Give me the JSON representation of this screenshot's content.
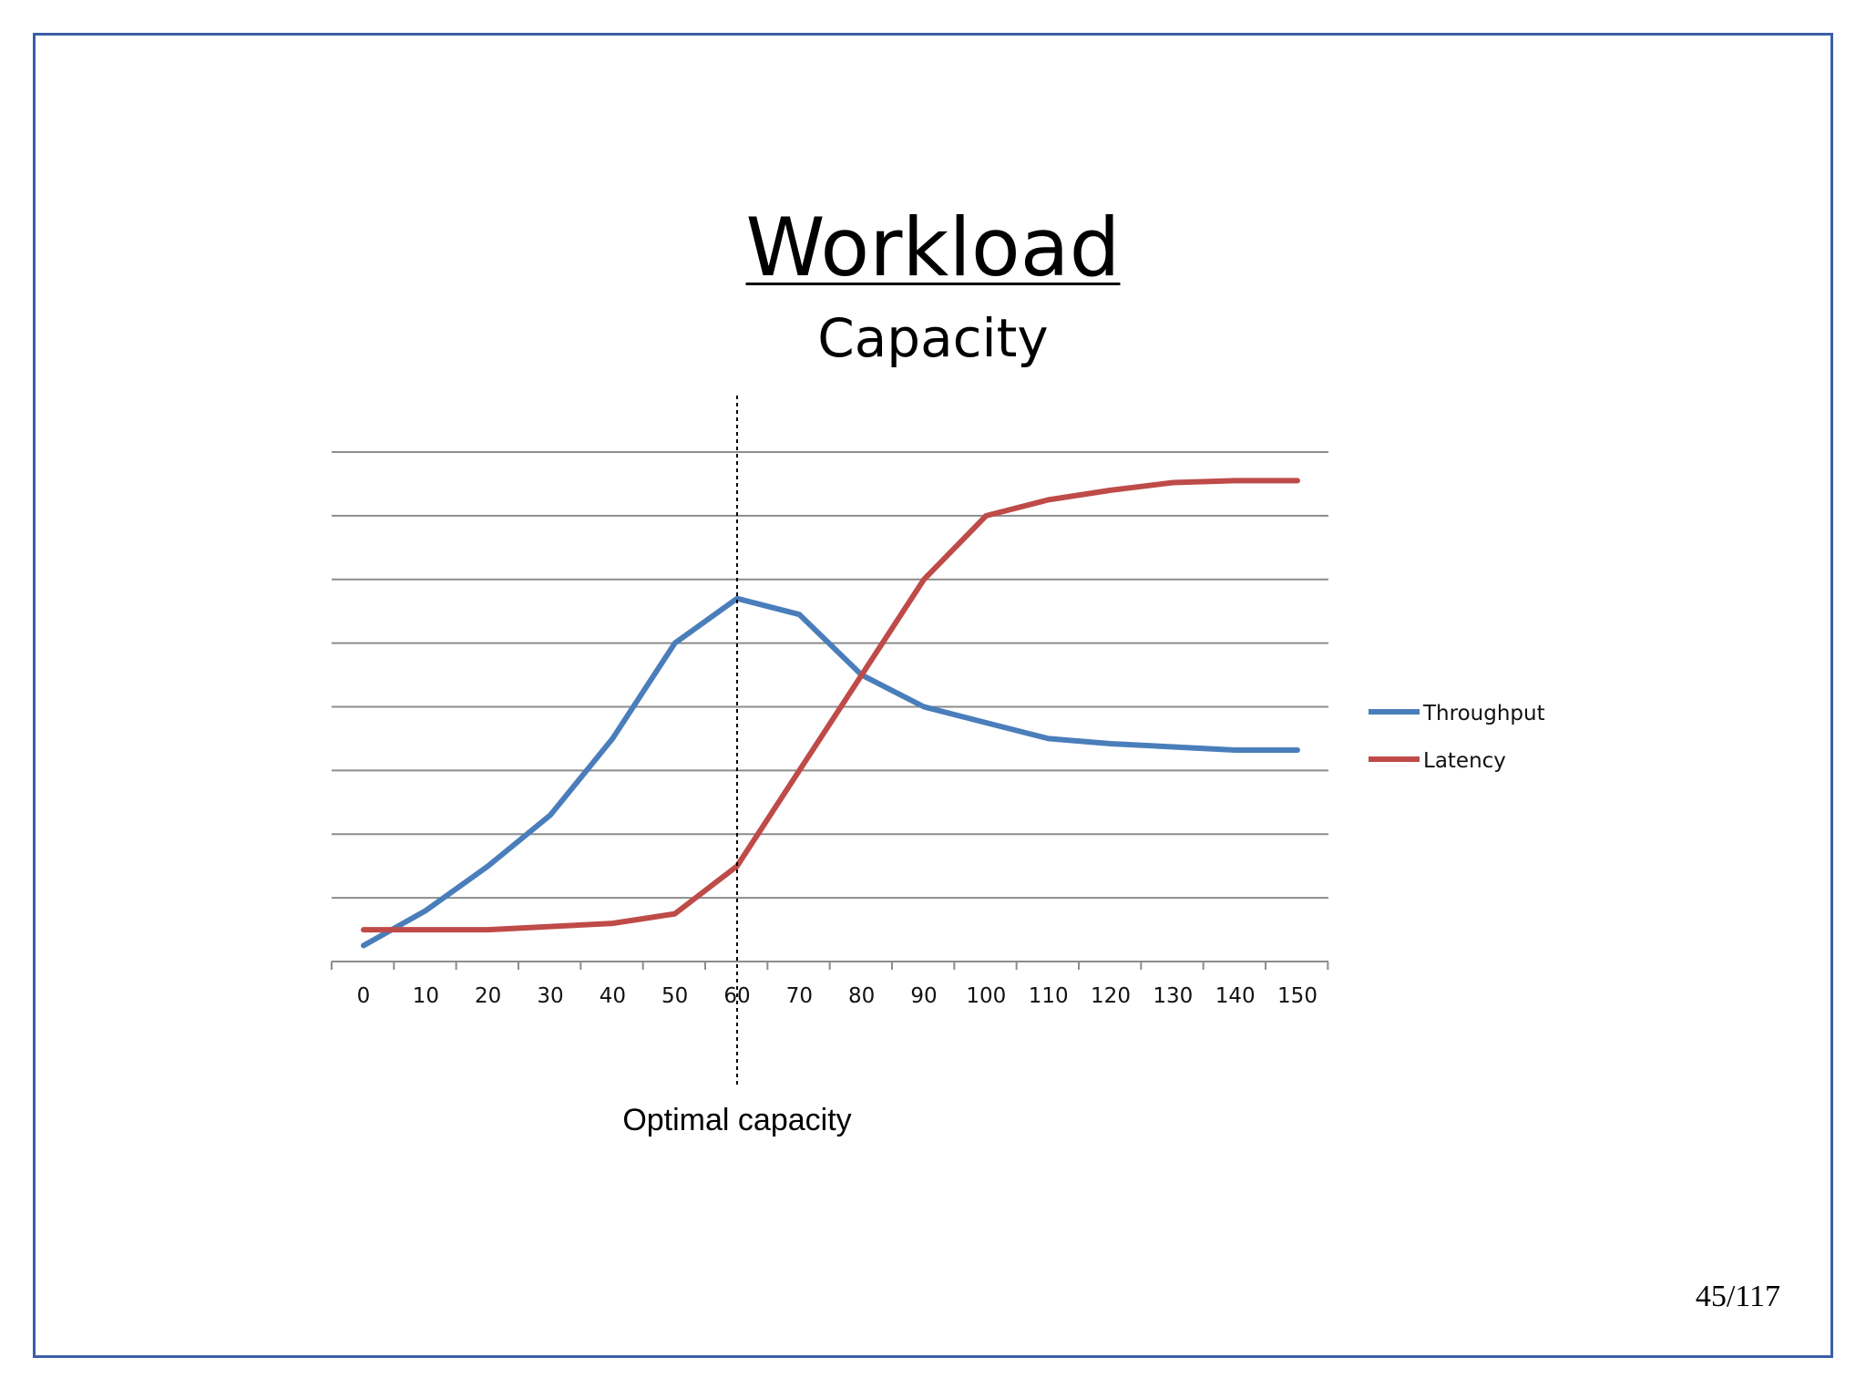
{
  "slide": {
    "title": "Workload",
    "subtitle": "Capacity",
    "annotation": "Optimal capacity",
    "page_number": "45/117",
    "frame_color": "#3a5ea8"
  },
  "chart_data": {
    "type": "line",
    "x": [
      0,
      10,
      20,
      30,
      40,
      50,
      60,
      70,
      80,
      90,
      100,
      110,
      120,
      130,
      140,
      150
    ],
    "x_tick_labels": [
      "0",
      "10",
      "20",
      "30",
      "40",
      "50",
      "60",
      "70",
      "80",
      "90",
      "100",
      "110",
      "120",
      "130",
      "140",
      "150"
    ],
    "series": [
      {
        "name": "Throughput",
        "color": "#4a7ebb",
        "values": [
          0.25,
          0.8,
          1.5,
          2.3,
          3.5,
          5.0,
          5.7,
          5.45,
          4.5,
          4.0,
          3.75,
          3.5,
          3.42,
          3.37,
          3.32,
          3.32
        ]
      },
      {
        "name": "Latency",
        "color": "#be4b48",
        "values": [
          0.5,
          0.5,
          0.5,
          0.55,
          0.6,
          0.75,
          1.5,
          3.0,
          4.5,
          6.0,
          7.0,
          7.25,
          7.4,
          7.52,
          7.55,
          7.55
        ]
      }
    ],
    "ylim": [
      0,
      8
    ],
    "y_gridlines": 8,
    "y_tick_labels_shown": false,
    "grid": true,
    "legend_position": "right",
    "marker_x": 60,
    "marker_label": "Optimal capacity",
    "title": "",
    "xlabel": "",
    "ylabel": ""
  }
}
